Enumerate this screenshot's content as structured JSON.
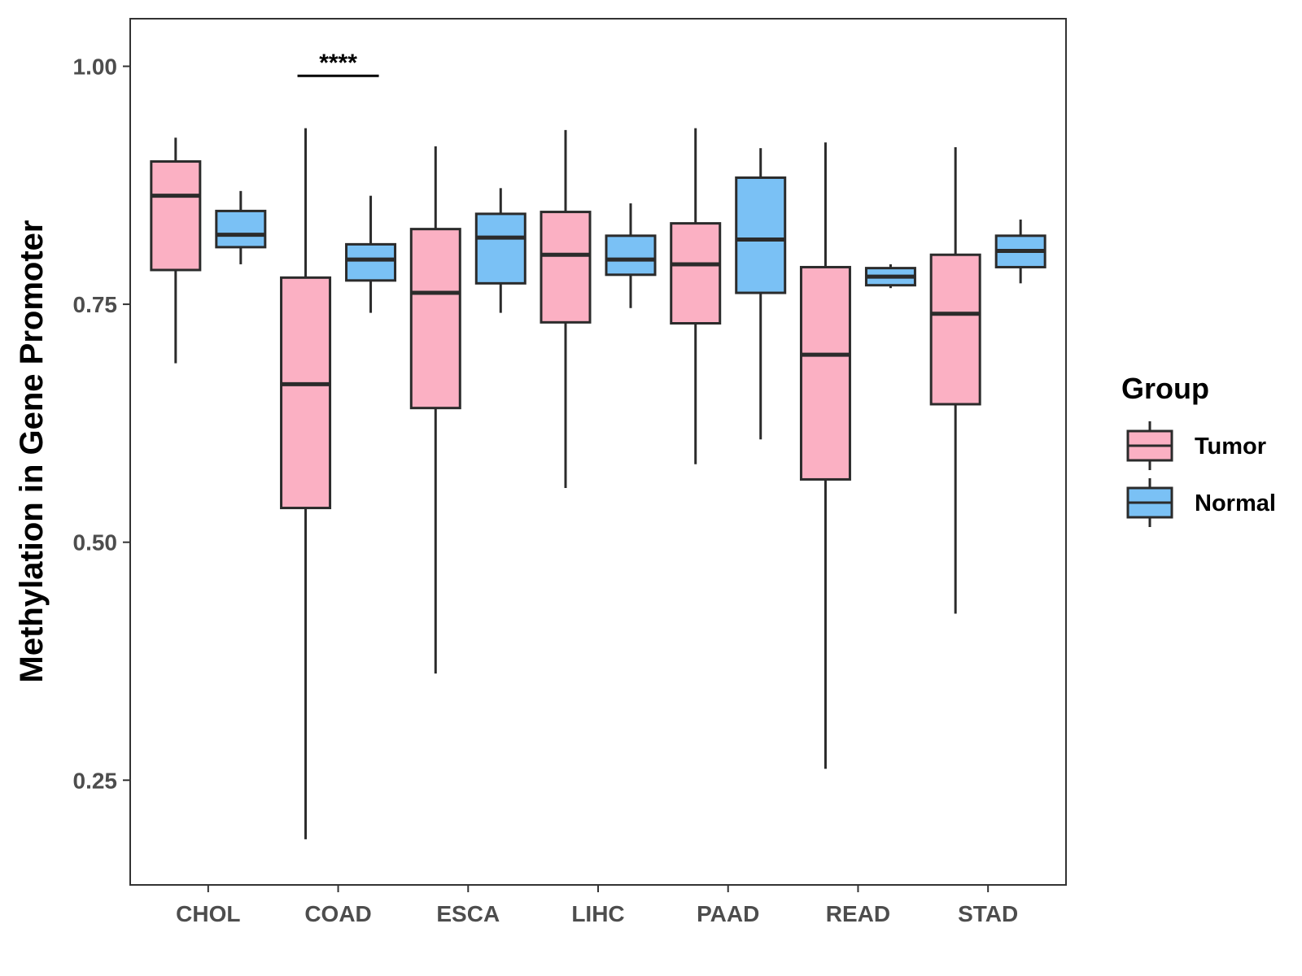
{
  "chart_data": {
    "type": "boxplot",
    "title": "",
    "xlabel": "",
    "ylabel": "Methylation in Gene Promoter",
    "ylim": [
      0.14,
      1.05
    ],
    "yticks": [
      0.25,
      0.5,
      0.75,
      1.0
    ],
    "ytick_labels": [
      "0.25",
      "0.50",
      "0.75",
      "1.00"
    ],
    "grid": false,
    "categories": [
      "CHOL",
      "COAD",
      "ESCA",
      "LIHC",
      "PAAD",
      "READ",
      "STAD"
    ],
    "legend": {
      "title": "Group",
      "position": "right",
      "entries": [
        {
          "name": "Tumor",
          "color": "#FBB0C3"
        },
        {
          "name": "Normal",
          "color": "#7AC1F5"
        }
      ]
    },
    "series": [
      {
        "name": "Tumor",
        "color": "#FBB0C3",
        "boxes": [
          {
            "category": "CHOL",
            "min": 0.688,
            "q1": 0.786,
            "median": 0.864,
            "q3": 0.9,
            "max": 0.925
          },
          {
            "category": "COAD",
            "min": 0.188,
            "q1": 0.536,
            "median": 0.666,
            "q3": 0.778,
            "max": 0.935
          },
          {
            "category": "ESCA",
            "min": 0.362,
            "q1": 0.641,
            "median": 0.762,
            "q3": 0.829,
            "max": 0.916
          },
          {
            "category": "LIHC",
            "min": 0.557,
            "q1": 0.731,
            "median": 0.802,
            "q3": 0.847,
            "max": 0.933
          },
          {
            "category": "PAAD",
            "min": 0.582,
            "q1": 0.73,
            "median": 0.792,
            "q3": 0.835,
            "max": 0.935
          },
          {
            "category": "READ",
            "min": 0.262,
            "q1": 0.566,
            "median": 0.697,
            "q3": 0.789,
            "max": 0.92
          },
          {
            "category": "STAD",
            "min": 0.425,
            "q1": 0.645,
            "median": 0.74,
            "q3": 0.802,
            "max": 0.915
          }
        ]
      },
      {
        "name": "Normal",
        "color": "#7AC1F5",
        "boxes": [
          {
            "category": "CHOL",
            "min": 0.792,
            "q1": 0.81,
            "median": 0.823,
            "q3": 0.848,
            "max": 0.869
          },
          {
            "category": "COAD",
            "min": 0.741,
            "q1": 0.775,
            "median": 0.797,
            "q3": 0.813,
            "max": 0.864
          },
          {
            "category": "ESCA",
            "min": 0.741,
            "q1": 0.772,
            "median": 0.82,
            "q3": 0.845,
            "max": 0.872
          },
          {
            "category": "LIHC",
            "min": 0.746,
            "q1": 0.781,
            "median": 0.797,
            "q3": 0.822,
            "max": 0.856
          },
          {
            "category": "PAAD",
            "min": 0.608,
            "q1": 0.762,
            "median": 0.818,
            "q3": 0.883,
            "max": 0.914
          },
          {
            "category": "READ",
            "min": 0.767,
            "q1": 0.77,
            "median": 0.779,
            "q3": 0.788,
            "max": 0.792
          },
          {
            "category": "STAD",
            "min": 0.772,
            "q1": 0.789,
            "median": 0.806,
            "q3": 0.822,
            "max": 0.839
          }
        ]
      }
    ],
    "annotations": [
      {
        "category": "COAD",
        "text": "****",
        "y": 0.99
      }
    ]
  }
}
